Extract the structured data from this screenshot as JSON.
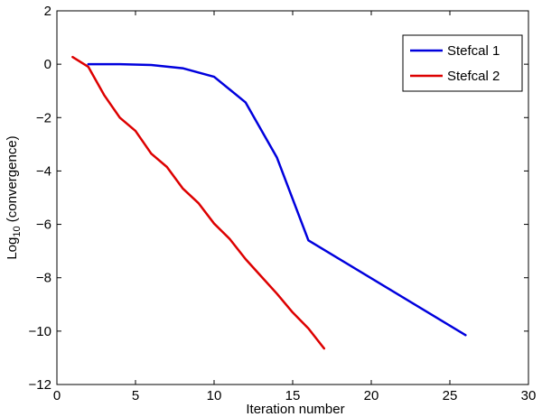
{
  "chart_data": {
    "type": "line",
    "title": "",
    "xlabel": "Iteration number",
    "ylabel_main": "Log",
    "ylabel_sub": "10",
    "ylabel_rest": " (convergence)",
    "xlim": [
      0,
      30
    ],
    "ylim": [
      -12,
      2
    ],
    "xticks": [
      0,
      5,
      10,
      15,
      20,
      25,
      30
    ],
    "yticks": [
      -12,
      -10,
      -8,
      -6,
      -4,
      -2,
      0,
      2
    ],
    "xtick_labels": [
      "0",
      "5",
      "10",
      "15",
      "20",
      "25",
      "30"
    ],
    "ytick_labels": [
      "−12",
      "−10",
      "−8",
      "−6",
      "−4",
      "−2",
      "0",
      "2"
    ],
    "grid": false,
    "legend_position": "top-right",
    "series": [
      {
        "name": "Stefcal 1",
        "color": "#0000dd",
        "x": [
          2,
          4,
          6,
          8,
          10,
          12,
          14,
          16,
          26
        ],
        "y": [
          0,
          0,
          -0.03,
          -0.15,
          -0.47,
          -1.43,
          -3.5,
          -6.6,
          -10.15
        ]
      },
      {
        "name": "Stefcal 2",
        "color": "#dd0000",
        "x": [
          1,
          2,
          3,
          4,
          5,
          6,
          7,
          8,
          9,
          10,
          11,
          12,
          13,
          14,
          15,
          16,
          17
        ],
        "y": [
          0.27,
          -0.1,
          -1.15,
          -2.0,
          -2.5,
          -3.35,
          -3.85,
          -4.65,
          -5.2,
          -5.97,
          -6.55,
          -7.3,
          -7.95,
          -8.6,
          -9.3,
          -9.9,
          -10.65
        ]
      }
    ]
  }
}
